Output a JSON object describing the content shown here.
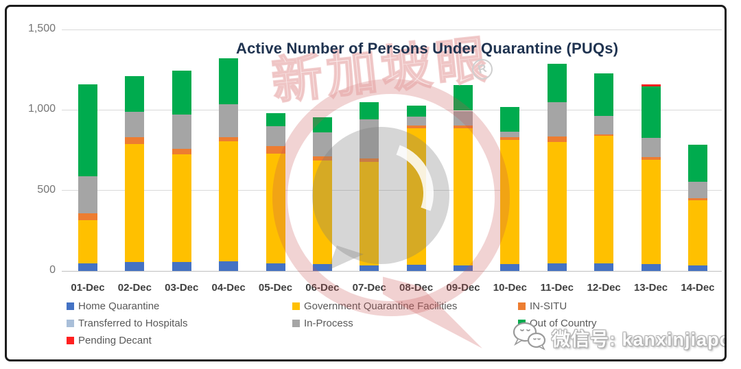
{
  "chart_data": {
    "type": "bar",
    "stacked": true,
    "title": "Active Number of Persons Under Quarantine (PUQs)",
    "categories": [
      "01-Dec",
      "02-Dec",
      "03-Dec",
      "04-Dec",
      "05-Dec",
      "06-Dec",
      "07-Dec",
      "08-Dec",
      "09-Dec",
      "10-Dec",
      "11-Dec",
      "12-Dec",
      "13-Dec",
      "14-Dec"
    ],
    "series": [
      {
        "name": "Home Quarantine",
        "color": "#4472c4",
        "values": [
          45,
          55,
          55,
          60,
          48,
          42,
          33,
          39,
          35,
          42,
          49,
          45,
          42,
          35
        ]
      },
      {
        "name": "Government Quarantine Facilities",
        "color": "#ffc000",
        "values": [
          270,
          735,
          670,
          745,
          682,
          643,
          643,
          847,
          853,
          774,
          753,
          795,
          650,
          405
        ]
      },
      {
        "name": "IN-SITU",
        "color": "#ed7d31",
        "values": [
          45,
          40,
          35,
          25,
          45,
          27,
          22,
          17,
          15,
          14,
          35,
          10,
          17,
          12
        ]
      },
      {
        "name": "Transferred to Hospitals",
        "color": "#a9bfd9",
        "values": [
          0,
          0,
          0,
          0,
          0,
          0,
          0,
          0,
          0,
          0,
          0,
          0,
          0,
          0
        ]
      },
      {
        "name": "In-Process",
        "color": "#a5a5a5",
        "values": [
          230,
          160,
          210,
          205,
          125,
          148,
          244,
          54,
          92,
          34,
          212,
          113,
          117,
          101
        ]
      },
      {
        "name": "Out of Country",
        "color": "#00ab4e",
        "values": [
          570,
          220,
          275,
          285,
          80,
          95,
          107,
          70,
          160,
          153,
          236,
          263,
          321,
          233
        ]
      },
      {
        "name": "Pending Decant",
        "color": "#ff2020",
        "values": [
          0,
          0,
          0,
          0,
          0,
          0,
          0,
          0,
          0,
          0,
          0,
          0,
          11,
          0
        ]
      }
    ],
    "xlabel": "",
    "ylabel": "",
    "ylim": [
      0,
      1500
    ],
    "yticks": {
      "labels": [
        "0",
        "500",
        "1,000",
        "1,500"
      ],
      "values": [
        0,
        500,
        1000,
        1500
      ]
    },
    "grid": true,
    "legend_position": "bottom-left"
  },
  "watermark": {
    "cn_text": "新加坡眼",
    "registered_mark": "R"
  },
  "footer": {
    "wechat_label": "微信号: kanxinjiapo"
  }
}
